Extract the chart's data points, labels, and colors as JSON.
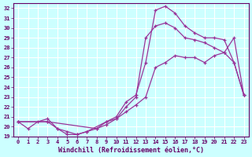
{
  "xlabel": "Windchill (Refroidissement éolien,°C)",
  "line_color": "#993399",
  "background_color": "#ccffff",
  "grid_color": "#ffffff",
  "xlim": [
    -0.5,
    23.5
  ],
  "ylim": [
    19,
    32.5
  ],
  "xticks": [
    0,
    1,
    2,
    3,
    4,
    5,
    6,
    7,
    8,
    9,
    10,
    11,
    12,
    13,
    14,
    15,
    16,
    17,
    18,
    19,
    20,
    21,
    22,
    23
  ],
  "yticks": [
    19,
    20,
    21,
    22,
    23,
    24,
    25,
    26,
    27,
    28,
    29,
    30,
    31,
    32
  ],
  "line1_x": [
    0,
    1,
    2,
    3,
    4,
    5,
    6,
    7,
    9,
    10,
    11,
    12,
    13,
    14,
    15,
    16,
    17,
    18,
    19,
    20,
    21,
    22,
    23
  ],
  "line1_y": [
    20.5,
    19.8,
    20.5,
    20.8,
    19.8,
    19.2,
    19.2,
    19.5,
    20.5,
    21.0,
    22.5,
    23.2,
    26.5,
    31.8,
    32.2,
    31.5,
    30.2,
    29.5,
    29.0,
    29.0,
    28.8,
    26.5,
    23.2
  ],
  "line2_x": [
    0,
    3,
    8,
    9,
    10,
    11,
    12,
    13,
    14,
    15,
    16,
    17,
    18,
    19,
    20,
    21,
    22,
    23
  ],
  "line2_y": [
    20.5,
    20.5,
    19.8,
    20.2,
    20.8,
    21.5,
    22.2,
    23.0,
    26.0,
    26.5,
    27.2,
    27.0,
    27.0,
    26.5,
    27.2,
    27.5,
    26.5,
    23.2
  ],
  "line3_x": [
    0,
    3,
    4,
    5,
    6,
    7,
    8,
    9,
    10,
    11,
    12,
    13,
    14,
    15,
    16,
    17,
    18,
    19,
    20,
    21,
    22,
    23
  ],
  "line3_y": [
    20.5,
    20.5,
    19.8,
    19.5,
    19.2,
    19.5,
    19.8,
    20.5,
    20.8,
    22.0,
    23.0,
    29.0,
    30.2,
    30.5,
    30.0,
    29.0,
    28.8,
    28.5,
    28.0,
    27.5,
    29.0,
    23.2
  ]
}
